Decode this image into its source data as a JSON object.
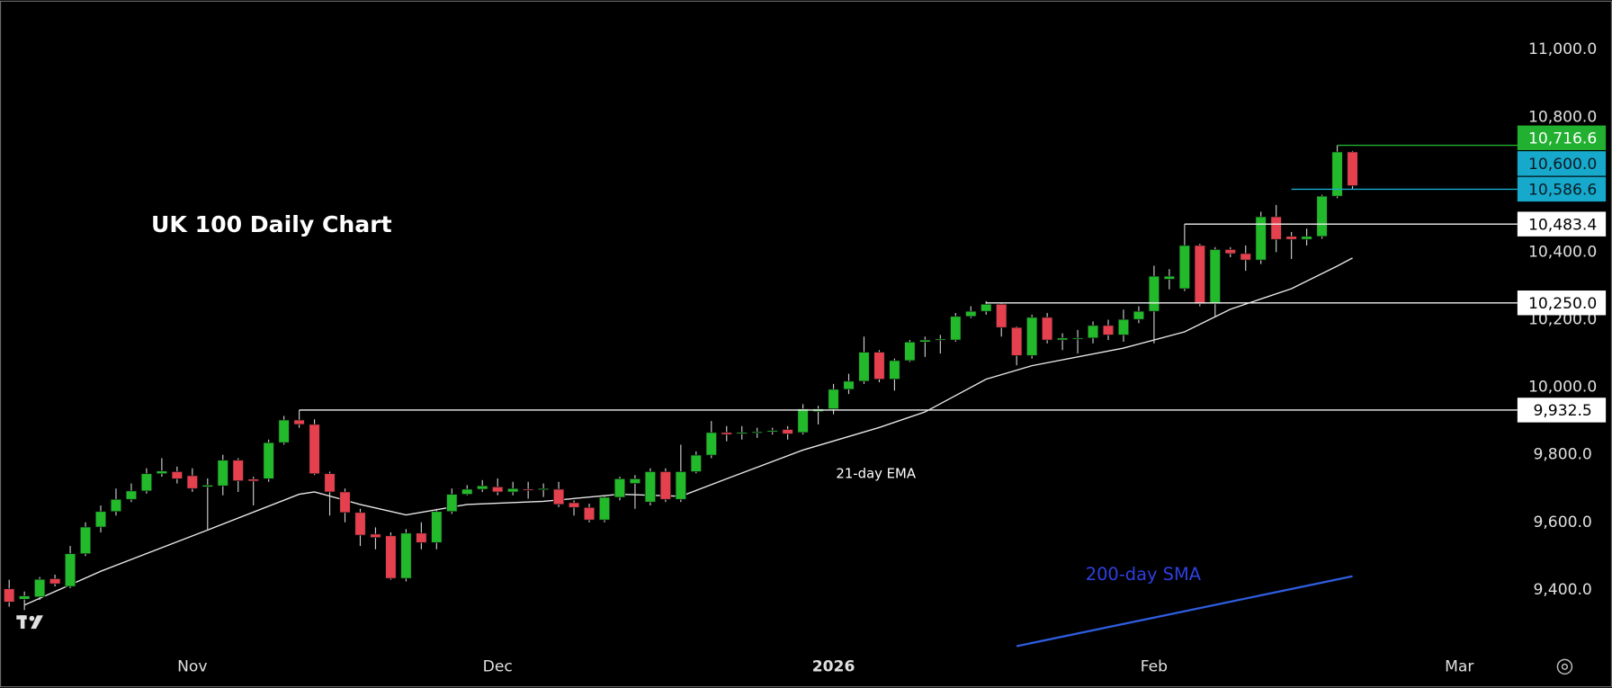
{
  "chart_data": {
    "type": "candlestick",
    "title": "UK 100 Daily Chart",
    "xlim": [
      -0.6,
      98.4
    ],
    "xticks": [
      {
        "value": 12,
        "label": "Nov"
      },
      {
        "value": 32,
        "label": "Dec"
      },
      {
        "value": 54,
        "label": "2026"
      },
      {
        "value": 75,
        "label": "Feb"
      },
      {
        "value": 95,
        "label": "Mar"
      }
    ],
    "ylim": [
      9227,
      11145
    ],
    "yticks": [
      {
        "value": 9400,
        "label": "9,400.0"
      },
      {
        "value": 9600,
        "label": "9,600.0"
      },
      {
        "value": 9800,
        "label": "9,800.0"
      },
      {
        "value": 10000,
        "label": "10,000.0"
      },
      {
        "value": 10200,
        "label": "10,200.0"
      },
      {
        "value": 10400,
        "label": "10,400.0"
      },
      {
        "value": 10600,
        "label": "10,600.0"
      },
      {
        "value": 10800,
        "label": "10,800.0"
      },
      {
        "value": 11000,
        "label": "11,000.0"
      }
    ],
    "up_color": "#22b92b",
    "down_color": "#e5404e",
    "wick_color": "#cfcfcf",
    "open": [
      9403,
      9372,
      9379,
      9433,
      9410,
      9507,
      9586,
      9632,
      9668,
      9693,
      9744,
      9750,
      9738,
      9705,
      9708,
      9784,
      9728,
      9729,
      9836,
      9903,
      9890,
      9744,
      9690,
      9629,
      9565,
      9560,
      9434,
      9568,
      9540,
      9632,
      9683,
      9698,
      9705,
      9690,
      9698,
      9697,
      9698,
      9658,
      9644,
      9607,
      9674,
      9715,
      9660,
      9750,
      9668,
      9750,
      9799,
      9866,
      9862,
      9866,
      9868,
      9875,
      9866,
      9928,
      9936,
      9994,
      10018,
      10104,
      10024,
      10079,
      10134,
      10140,
      10140,
      10210,
      10225,
      10246,
      10177,
      10094,
      10207,
      10140,
      10143,
      10146,
      10183,
      10155,
      10201,
      10225,
      10320,
      10292,
      10420,
      10247,
      10408,
      10396,
      10377,
      10505,
      10447,
      10438,
      10447,
      10566,
      10697
    ],
    "high": [
      9430,
      9395,
      9438,
      9445,
      9530,
      9600,
      9650,
      9700,
      9715,
      9760,
      9790,
      9765,
      9760,
      9730,
      9800,
      9790,
      9735,
      9845,
      9915,
      9932,
      9905,
      9750,
      9700,
      9640,
      9585,
      9570,
      9580,
      9600,
      9640,
      9700,
      9710,
      9725,
      9730,
      9720,
      9720,
      9715,
      9720,
      9665,
      9655,
      9680,
      9735,
      9740,
      9760,
      9760,
      9830,
      9810,
      9900,
      9885,
      9885,
      9880,
      9880,
      9885,
      9950,
      9945,
      10010,
      10040,
      10150,
      10110,
      10085,
      10140,
      10150,
      10155,
      10220,
      10240,
      10255,
      10250,
      10180,
      10215,
      10220,
      10160,
      10170,
      10195,
      10200,
      10230,
      10240,
      10360,
      10350,
      10483,
      10425,
      10415,
      10415,
      10420,
      10520,
      10540,
      10460,
      10470,
      10570,
      10716.6,
      10700
    ],
    "low": [
      9350,
      9340,
      9370,
      9410,
      9405,
      9500,
      9570,
      9620,
      9660,
      9685,
      9735,
      9715,
      9690,
      9575,
      9680,
      9690,
      9650,
      9720,
      9830,
      9880,
      9740,
      9620,
      9600,
      9530,
      9520,
      9430,
      9425,
      9520,
      9520,
      9625,
      9680,
      9690,
      9680,
      9680,
      9670,
      9675,
      9645,
      9620,
      9600,
      9600,
      9665,
      9640,
      9650,
      9660,
      9660,
      9745,
      9790,
      9840,
      9845,
      9850,
      9860,
      9845,
      9860,
      9890,
      9920,
      9980,
      10010,
      10015,
      9990,
      10075,
      10090,
      10100,
      10135,
      10205,
      10215,
      10150,
      10065,
      10085,
      10130,
      10110,
      10100,
      10130,
      10140,
      10135,
      10190,
      10130,
      10290,
      10285,
      10240,
      10210,
      10385,
      10345,
      10365,
      10400,
      10380,
      10420,
      10440,
      10560,
      10586.6
    ],
    "close": [
      9364,
      9382,
      9431,
      9418,
      9507,
      9586,
      9632,
      9668,
      9693,
      9744,
      9752,
      9729,
      9700,
      9710,
      9784,
      9723,
      9722,
      9836,
      9903,
      9890,
      9744,
      9690,
      9629,
      9562,
      9555,
      9434,
      9568,
      9540,
      9632,
      9683,
      9698,
      9708,
      9690,
      9700,
      9695,
      9700,
      9653,
      9644,
      9607,
      9674,
      9729,
      9729,
      9750,
      9668,
      9750,
      9799,
      9866,
      9860,
      9866,
      9868,
      9872,
      9862,
      9936,
      9936,
      9994,
      10018,
      10104,
      10024,
      10079,
      10134,
      10140,
      10143,
      10210,
      10225,
      10246,
      10177,
      10094,
      10207,
      10140,
      10146,
      10146,
      10183,
      10155,
      10201,
      10225,
      10329,
      10329,
      10420,
      10247,
      10408,
      10396,
      10377,
      10505,
      10438,
      10438,
      10447,
      10566,
      10697,
      10597
    ],
    "lines": [
      {
        "name": "21-day EMA",
        "color": "#e8e8e8",
        "x": [
          1,
          6,
          13,
          19,
          20,
          23,
          26,
          30,
          35,
          40,
          44,
          47,
          52,
          57,
          60,
          64,
          67,
          73,
          77,
          80,
          84,
          87,
          88
        ],
        "values": [
          9355,
          9455,
          9577,
          9683,
          9690,
          9653,
          9622,
          9653,
          9662,
          9683,
          9677,
          9729,
          9814,
          9881,
          9927,
          10024,
          10064,
          10116,
          10164,
          10231,
          10292,
          10359,
          10383
        ]
      },
      {
        "name": "200-day SMA",
        "color": "#2f5de0",
        "x": [
          66,
          88
        ],
        "values": [
          9233,
          9440
        ]
      }
    ],
    "levels": [
      {
        "value": 10716.6,
        "label": "10,716.6",
        "from": 87,
        "color": "#22b030",
        "text_color": "#ffffff"
      },
      {
        "value": 10600,
        "label": "10,600.0",
        "color": "#17a9cc",
        "text_color": "#0b1b22"
      },
      {
        "value": 10586.6,
        "label": "10,586.6",
        "from": 84,
        "color": "#17a9cc",
        "text_color": "#0b1b22"
      },
      {
        "value": 10483.4,
        "label": "10,483.4",
        "from": 77,
        "color": "#ffffff",
        "text_color": "#000000"
      },
      {
        "value": 10250,
        "label": "10,250.0",
        "from": 64,
        "color": "#ffffff",
        "text_color": "#000000"
      },
      {
        "value": 9932.5,
        "label": "9,932.5",
        "from": 19,
        "color": "#ffffff",
        "text_color": "#000000"
      }
    ]
  }
}
